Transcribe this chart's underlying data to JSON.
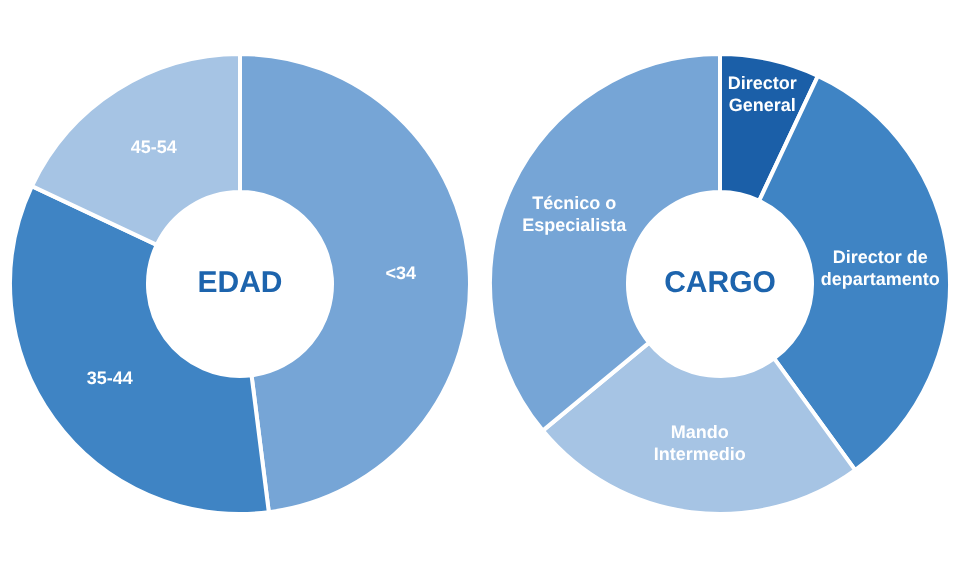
{
  "chart_data": [
    {
      "type": "donut",
      "title": "EDAD",
      "categories": [
        "<34",
        "35-44",
        "45-54"
      ],
      "values": [
        48,
        34,
        18
      ],
      "colors": [
        "#76a5d6",
        "#3f84c4",
        "#a6c4e4"
      ],
      "legend": false
    },
    {
      "type": "donut",
      "title": "CARGO",
      "categories": [
        "Director General",
        "Director de departamento",
        "Mando Intermedio",
        "Técnico o Especialista"
      ],
      "values": [
        7,
        33,
        24,
        36
      ],
      "colors": [
        "#1b5fa8",
        "#3f84c4",
        "#a6c4e4",
        "#76a5d6"
      ],
      "legend": false
    }
  ]
}
